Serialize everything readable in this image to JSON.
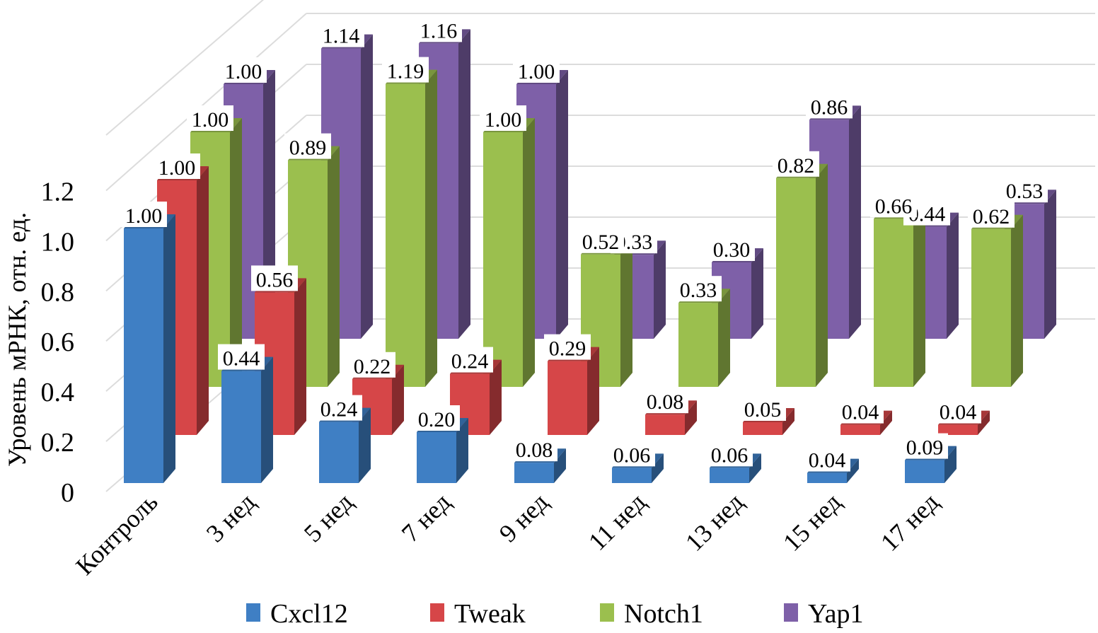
{
  "chart_data": {
    "type": "bar",
    "variant": "3d-clustered-depth",
    "title": "",
    "xlabel": "",
    "ylabel": "Уровень мРНК, отн. ед.",
    "ylim": [
      0,
      1.2
    ],
    "yticks": [
      "0",
      "0.2",
      "0.4",
      "0.6",
      "0.8",
      "1.0",
      "1.2"
    ],
    "grid": true,
    "legend_position": "bottom",
    "categories": [
      "Контроль",
      "3 нед",
      "5 нед",
      "7 нед",
      "9 нед",
      "11 нед",
      "13 нед",
      "15 нед",
      "17 нед"
    ],
    "series": [
      {
        "name": "Cxcl12",
        "color": "#3f7fc4",
        "values": [
          1.0,
          0.44,
          0.24,
          0.2,
          0.08,
          0.06,
          0.06,
          0.04,
          0.09
        ],
        "labels": [
          "1.00",
          "0.44",
          "0.24",
          "0.20",
          "0.08",
          "0.06",
          "0.06",
          "0.04",
          "0.09"
        ]
      },
      {
        "name": "Tweak",
        "color": "#d64648",
        "values": [
          1.0,
          0.56,
          0.22,
          0.24,
          0.29,
          0.08,
          0.05,
          0.04,
          0.04
        ],
        "labels": [
          "1.00",
          "0.56",
          "0.22",
          "0.24",
          "0.29",
          "0.08",
          "0.05",
          "0.04",
          "0.04"
        ]
      },
      {
        "name": "Notch1",
        "color": "#9bbf4e",
        "values": [
          1.0,
          0.89,
          1.19,
          1.0,
          0.52,
          0.33,
          0.82,
          0.66,
          0.62
        ],
        "labels": [
          "1.00",
          "0.89",
          "1.19",
          "1.00",
          "0.52",
          "0.33",
          "0.82",
          "0.66",
          "0.62"
        ]
      },
      {
        "name": "Yap1",
        "color": "#7e60a8",
        "values": [
          1.0,
          1.14,
          1.16,
          1.0,
          0.33,
          0.3,
          0.86,
          0.44,
          0.53
        ],
        "labels": [
          "1.00",
          "1.14",
          "1.16",
          "1.00",
          "0.33",
          "0.30",
          "0.86",
          "0.44",
          "0.53"
        ]
      }
    ]
  }
}
